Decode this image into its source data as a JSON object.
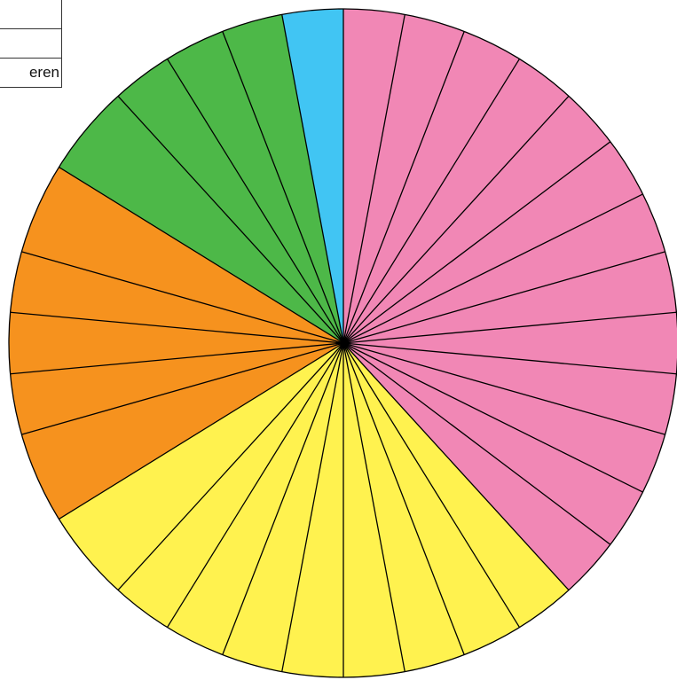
{
  "chart_data": {
    "type": "pie",
    "start_angle": "top",
    "direction": "clockwise",
    "outline_color": "#000000",
    "colors": {
      "pink": "#f187b5",
      "yellow": "#fff24f",
      "orange": "#f6921e",
      "green": "#4db848",
      "blue": "#41c5f3"
    },
    "slices": [
      {
        "value": 1,
        "color": "pink"
      },
      {
        "value": 1,
        "color": "pink"
      },
      {
        "value": 1,
        "color": "pink"
      },
      {
        "value": 1,
        "color": "pink"
      },
      {
        "value": 1,
        "color": "pink"
      },
      {
        "value": 1,
        "color": "pink"
      },
      {
        "value": 1,
        "color": "pink"
      },
      {
        "value": 1,
        "color": "pink"
      },
      {
        "value": 1,
        "color": "pink"
      },
      {
        "value": 1,
        "color": "pink"
      },
      {
        "value": 1,
        "color": "pink"
      },
      {
        "value": 1,
        "color": "pink"
      },
      {
        "value": 1,
        "color": "pink"
      },
      {
        "value": 1,
        "color": "yellow"
      },
      {
        "value": 1,
        "color": "yellow"
      },
      {
        "value": 1,
        "color": "yellow"
      },
      {
        "value": 1,
        "color": "yellow"
      },
      {
        "value": 1,
        "color": "yellow"
      },
      {
        "value": 1,
        "color": "yellow"
      },
      {
        "value": 1,
        "color": "yellow"
      },
      {
        "value": 1,
        "color": "yellow"
      },
      {
        "value": 1.5,
        "color": "yellow"
      },
      {
        "value": 1.5,
        "color": "orange"
      },
      {
        "value": 1,
        "color": "orange"
      },
      {
        "value": 1,
        "color": "orange"
      },
      {
        "value": 1,
        "color": "orange"
      },
      {
        "value": 1.5,
        "color": "orange"
      },
      {
        "value": 1.5,
        "color": "green"
      },
      {
        "value": 1,
        "color": "green"
      },
      {
        "value": 1,
        "color": "green"
      },
      {
        "value": 1,
        "color": "green"
      },
      {
        "value": 1,
        "color": "blue"
      }
    ]
  },
  "labels": {
    "rows": [
      "",
      "",
      "eren"
    ]
  }
}
